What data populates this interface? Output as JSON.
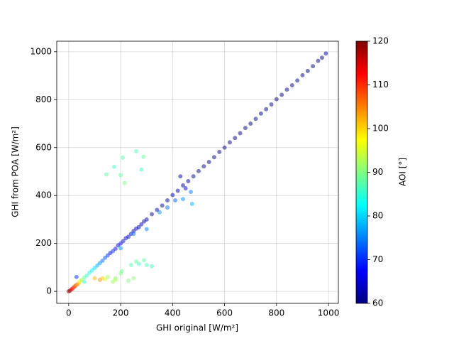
{
  "chart_data": {
    "type": "scatter",
    "x_label": "GHI original [W/m²]",
    "y_label": "GHI from POA [W/m²]",
    "xlim": [
      -46,
      1038
    ],
    "ylim": [
      -50,
      1044
    ],
    "xticks": [
      0,
      200,
      400,
      600,
      800,
      1000
    ],
    "yticks": [
      0,
      200,
      400,
      600,
      800,
      1000
    ],
    "grid": true,
    "colormap": "jet",
    "colorbar": {
      "label": "AOI [°]",
      "lim": [
        60,
        120
      ],
      "ticks": [
        60,
        70,
        80,
        90,
        100,
        110,
        120
      ]
    },
    "x": [
      0,
      5,
      10,
      15,
      20,
      25,
      30,
      35,
      40,
      45,
      50,
      60,
      70,
      80,
      90,
      100,
      110,
      120,
      130,
      140,
      150,
      160,
      170,
      180,
      190,
      200,
      210,
      220,
      230,
      240,
      250,
      260,
      270,
      280,
      290,
      300,
      320,
      340,
      360,
      380,
      400,
      420,
      440,
      460,
      480,
      500,
      520,
      540,
      560,
      580,
      600,
      620,
      640,
      660,
      680,
      700,
      720,
      740,
      760,
      780,
      800,
      820,
      840,
      860,
      880,
      900,
      920,
      940,
      960,
      975,
      990,
      200,
      250,
      300,
      350,
      380,
      30,
      60,
      430,
      470,
      475,
      440,
      410,
      450,
      145,
      175,
      200,
      208,
      215,
      260,
      280,
      288,
      130,
      120,
      100,
      150,
      170,
      180,
      200,
      205,
      230,
      250,
      240,
      260,
      270,
      290,
      300,
      320,
      140,
      180
    ],
    "y": [
      0,
      3,
      8,
      12,
      18,
      22,
      28,
      30,
      36,
      44,
      48,
      58,
      66,
      78,
      88,
      98,
      108,
      118,
      128,
      140,
      150,
      160,
      168,
      178,
      192,
      200,
      210,
      222,
      228,
      240,
      252,
      262,
      268,
      280,
      292,
      300,
      322,
      340,
      358,
      380,
      402,
      420,
      442,
      460,
      480,
      502,
      522,
      540,
      560,
      582,
      600,
      622,
      640,
      660,
      682,
      700,
      720,
      742,
      760,
      780,
      802,
      820,
      842,
      860,
      880,
      902,
      920,
      940,
      962,
      975,
      993,
      180,
      240,
      260,
      330,
      350,
      60,
      40,
      480,
      415,
      365,
      385,
      380,
      430,
      488,
      520,
      485,
      558,
      452,
      585,
      508,
      562,
      55,
      48,
      55,
      60,
      40,
      55,
      75,
      85,
      45,
      55,
      110,
      125,
      115,
      130,
      110,
      105,
      50,
      48
    ],
    "aoi": [
      120,
      118,
      115,
      112,
      110,
      108,
      106,
      104,
      100,
      96,
      92,
      88,
      86,
      84,
      82,
      80,
      78,
      76,
      74,
      72,
      70,
      68,
      70,
      66,
      65,
      68,
      64,
      66,
      63,
      65,
      62,
      64,
      62,
      63,
      61,
      62,
      61,
      62,
      61,
      61,
      62,
      61,
      61,
      61,
      60,
      60,
      60,
      60,
      60,
      60,
      60,
      60,
      60,
      60,
      60,
      60,
      60,
      60,
      60,
      60,
      60,
      60,
      60,
      60,
      60,
      60,
      60,
      60,
      60,
      60,
      62,
      76,
      74,
      75,
      76,
      74,
      70,
      85,
      62,
      75,
      78,
      76,
      73,
      66,
      88,
      86,
      88,
      87,
      90,
      87,
      86,
      88,
      100,
      104,
      102,
      92,
      92,
      90,
      90,
      89,
      90,
      91,
      87,
      88,
      86,
      88,
      87,
      86,
      95,
      93
    ]
  }
}
